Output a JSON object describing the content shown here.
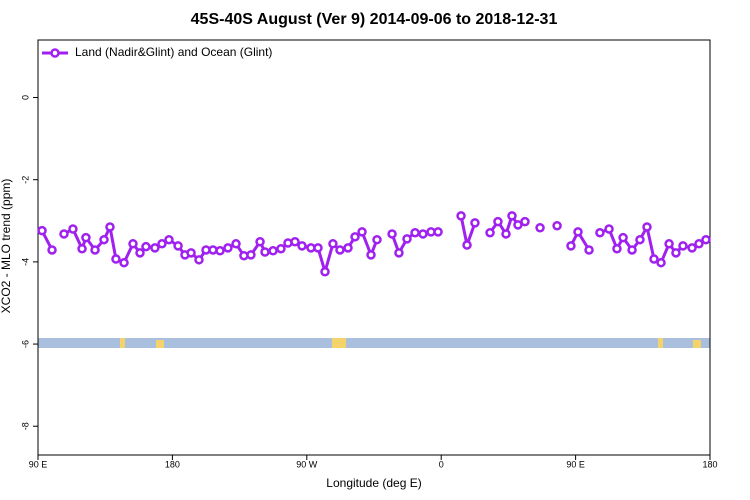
{
  "chart_data": {
    "type": "line",
    "title": "45S-40S August (Ver 9)   2014-09-06 to 2018-12-31",
    "xlabel": "Longitude (deg E)",
    "ylabel": "XCO2 - MLO trend (ppm)",
    "xlim": [
      90,
      540
    ],
    "ylim": [
      -8.7,
      1.4
    ],
    "xticks": [
      {
        "value": 90,
        "label": "90 E"
      },
      180,
      {
        "value": 270,
        "label": "90 W"
      },
      {
        "value": 360,
        "label": "0"
      },
      {
        "value": 450,
        "label": "90 E"
      },
      {
        "value": 540,
        "label": "180"
      }
    ],
    "yticks": [
      0,
      -2,
      -4,
      -6,
      -8
    ],
    "legend": "upper left",
    "x": [
      92.7,
      99.4,
      105,
      107.4,
      113.4,
      119.5,
      122.1,
      128.2,
      134.2,
      138.2,
      142.2,
      147.6,
      153.6,
      158.3,
      162.3,
      168.3,
      173.0,
      177.7,
      183.8,
      188.4,
      192.5,
      197.8,
      202.5,
      207.2,
      211.9,
      217.2,
      222.6,
      227.9,
      232.6,
      238.7,
      242.0,
      247.4,
      252.7,
      257.4,
      262.1,
      266.8,
      272.8,
      277.5,
      282.2,
      287.5,
      292.2,
      297.6,
      302.3,
      307.0,
      313.0,
      317.0,
      320,
      327.1,
      331.7,
      337.1,
      342.5,
      347.8,
      353.2,
      357.9,
      362,
      373.3,
      377.3,
      382.6,
      386,
      392.7,
      398.0,
      403.4,
      407.4,
      411.4,
      416.1,
      420,
      426.2,
      432,
      437.6,
      442,
      446.9,
      451.6,
      459.0,
      462,
      466.3,
      472.4,
      477.7,
      481.8,
      487.8,
      493.1,
      497.8,
      502.5,
      507.2,
      512.6,
      517.2,
      521.9,
      528.0,
      532.6,
      537.3
    ],
    "series": [
      {
        "name": "Land (Nadir&Glint) and Ocean (Glint)",
        "color": "#a020f0",
        "values": [
          -3.24,
          -3.71,
          null,
          -3.32,
          -3.2,
          -3.68,
          -3.41,
          -3.71,
          -3.46,
          -3.15,
          -3.93,
          -4.02,
          -3.56,
          -3.78,
          -3.63,
          -3.66,
          -3.56,
          -3.46,
          -3.61,
          -3.83,
          -3.78,
          -3.95,
          -3.71,
          -3.71,
          -3.73,
          -3.66,
          -3.56,
          -3.85,
          -3.83,
          -3.51,
          -3.76,
          -3.73,
          -3.68,
          -3.54,
          -3.51,
          -3.61,
          -3.66,
          -3.66,
          -4.24,
          -3.56,
          -3.71,
          -3.66,
          -3.39,
          -3.27,
          -3.83,
          -3.46,
          null,
          -3.32,
          -3.78,
          -3.44,
          -3.29,
          -3.32,
          -3.27,
          -3.27,
          null,
          -2.88,
          -3.59,
          -3.05,
          null,
          -3.29,
          -3.02,
          -3.32,
          -2.88,
          -3.1,
          -3.02,
          null,
          -3.17,
          null,
          -3.12,
          null,
          -3.61,
          -3.27,
          -3.71,
          null,
          -3.29,
          -3.2,
          -3.68,
          -3.41,
          -3.71,
          -3.46,
          -3.15,
          -3.93,
          -4.02,
          -3.56,
          -3.78,
          -3.61,
          -3.66,
          -3.56,
          -3.46
        ]
      }
    ]
  }
}
